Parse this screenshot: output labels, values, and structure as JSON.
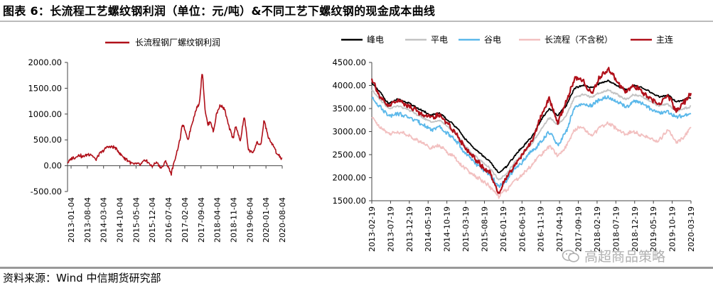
{
  "title": "图表 6：长流程工艺螺纹钢利润（单位：元/吨）&不同工艺下螺纹钢的现金成本曲线",
  "source": "资料来源：Wind 中信期货研究部",
  "watermark": "高超商品策略",
  "colors": {
    "profit": "#b0101a",
    "feng": "#000000",
    "ping": "#c3c3c3",
    "gu": "#5bb8ea",
    "changliucheng": "#f2c0c0",
    "zhulian": "#b0101a"
  },
  "chart_data": [
    {
      "type": "line",
      "title": "",
      "xlabel": "",
      "ylabel": "",
      "ylim": [
        -500,
        2000
      ],
      "yticks": [
        -500,
        0,
        500,
        1000,
        1500,
        2000
      ],
      "ytick_labels": [
        "-500.00",
        "0.00",
        "500.00",
        "1000.00",
        "1500.00",
        "2000.00"
      ],
      "xtick_labels": [
        "2013-01-04",
        "2013-08-04",
        "2014-03-04",
        "2014-10-04",
        "2015-05-04",
        "2015-12-04",
        "2016-07-04",
        "2017-02-04",
        "2017-09-04",
        "2018-04-04",
        "2018-11-04",
        "2019-06-04",
        "2020-01-04",
        "2020-08-04"
      ],
      "legend": "top",
      "series": [
        {
          "name": "长流程钢厂螺纹钢利润",
          "x": [
            2013.0,
            2013.2,
            2013.4,
            2013.6,
            2013.8,
            2014.0,
            2014.2,
            2014.4,
            2014.6,
            2014.8,
            2015.0,
            2015.2,
            2015.4,
            2015.6,
            2015.8,
            2016.0,
            2016.2,
            2016.35,
            2016.5,
            2016.7,
            2016.9,
            2017.0,
            2017.1,
            2017.2,
            2017.3,
            2017.4,
            2017.55,
            2017.7,
            2017.8,
            2017.9,
            2018.0,
            2018.1,
            2018.2,
            2018.3,
            2018.45,
            2018.6,
            2018.75,
            2018.9,
            2019.0,
            2019.15,
            2019.3,
            2019.45,
            2019.6,
            2019.75,
            2019.9,
            2020.0,
            2020.15,
            2020.3,
            2020.45,
            2020.55,
            2020.65
          ],
          "values": [
            50,
            150,
            200,
            180,
            230,
            120,
            260,
            350,
            380,
            280,
            150,
            80,
            20,
            30,
            100,
            -10,
            60,
            -50,
            80,
            -150,
            260,
            500,
            800,
            650,
            500,
            750,
            1050,
            1200,
            1850,
            1100,
            780,
            850,
            650,
            1000,
            1200,
            1100,
            750,
            520,
            780,
            450,
            950,
            300,
            260,
            450,
            400,
            900,
            550,
            400,
            250,
            200,
            120
          ]
        }
      ]
    },
    {
      "type": "line",
      "title": "",
      "xlabel": "",
      "ylabel": "",
      "ylim": [
        1500,
        4500
      ],
      "yticks": [
        1500,
        2000,
        2500,
        3000,
        3500,
        4000,
        4500
      ],
      "ytick_labels": [
        "1500.00",
        "2000.00",
        "2500.00",
        "3000.00",
        "3500.00",
        "4000.00",
        "4500.00"
      ],
      "xtick_labels": [
        "2013-02-19",
        "2013-07-19",
        "2013-12-19",
        "2014-05-19",
        "2014-10-19",
        "2015-03-19",
        "2015-08-19",
        "2016-01-19",
        "2016-06-19",
        "2016-11-19",
        "2017-04-19",
        "2017-09-19",
        "2018-02-19",
        "2018-07-19",
        "2018-12-19",
        "2019-05-19",
        "2019-10-19",
        "2020-03-19"
      ],
      "legend": "top",
      "x": [
        2013.0,
        2013.2,
        2013.4,
        2013.6,
        2013.8,
        2014.0,
        2014.2,
        2014.4,
        2014.6,
        2014.8,
        2015.0,
        2015.2,
        2015.4,
        2015.6,
        2015.8,
        2016.0,
        2016.2,
        2016.4,
        2016.6,
        2016.8,
        2017.0,
        2017.2,
        2017.4,
        2017.6,
        2017.8,
        2018.0,
        2018.2,
        2018.4,
        2018.6,
        2018.8,
        2019.0,
        2019.2,
        2019.4,
        2019.6,
        2019.8,
        2020.0,
        2020.2,
        2020.4,
        2020.55
      ],
      "series": [
        {
          "name": "峰电",
          "values": [
            4050,
            3850,
            3600,
            3700,
            3650,
            3550,
            3450,
            3350,
            3400,
            3250,
            3100,
            2850,
            2650,
            2500,
            2350,
            2100,
            2250,
            2500,
            2700,
            2900,
            3250,
            3500,
            3350,
            3550,
            3950,
            4000,
            3950,
            4050,
            4100,
            4000,
            3900,
            4000,
            3950,
            3850,
            3750,
            3800,
            3650,
            3700,
            3750
          ]
        },
        {
          "name": "平电",
          "values": [
            3900,
            3700,
            3500,
            3550,
            3500,
            3400,
            3300,
            3200,
            3250,
            3100,
            2950,
            2700,
            2500,
            2350,
            2200,
            1950,
            2100,
            2350,
            2550,
            2750,
            3050,
            3300,
            3150,
            3350,
            3750,
            3800,
            3750,
            3850,
            3900,
            3800,
            3700,
            3800,
            3750,
            3650,
            3550,
            3600,
            3450,
            3500,
            3550
          ]
        },
        {
          "name": "谷电",
          "values": [
            3750,
            3550,
            3350,
            3400,
            3350,
            3250,
            3150,
            3050,
            3100,
            2950,
            2800,
            2550,
            2350,
            2200,
            2050,
            1800,
            1950,
            2200,
            2400,
            2600,
            2750,
            3000,
            2700,
            3000,
            3550,
            3600,
            3550,
            3700,
            3750,
            3650,
            3550,
            3650,
            3600,
            3500,
            3400,
            3450,
            3300,
            3350,
            3400
          ]
        },
        {
          "name": "长流程（不含税）",
          "values": [
            3300,
            3100,
            2950,
            3000,
            2950,
            2850,
            2750,
            2650,
            2700,
            2550,
            2400,
            2200,
            2050,
            1950,
            1800,
            1600,
            1750,
            1950,
            2100,
            2300,
            2500,
            2700,
            2450,
            2700,
            3050,
            3100,
            2900,
            3100,
            3200,
            3050,
            2950,
            3000,
            2900,
            2850,
            2800,
            3050,
            2750,
            2900,
            3100
          ]
        },
        {
          "name": "主连",
          "values": [
            4150,
            3750,
            3550,
            3700,
            3600,
            3500,
            3350,
            3300,
            3350,
            3150,
            2950,
            2650,
            2450,
            2250,
            2100,
            1650,
            2050,
            2300,
            2550,
            2800,
            3350,
            3700,
            3200,
            3650,
            4150,
            4100,
            3800,
            4200,
            4350,
            4100,
            3850,
            4000,
            3850,
            3700,
            3600,
            3800,
            3450,
            3650,
            3850
          ]
        }
      ]
    }
  ]
}
